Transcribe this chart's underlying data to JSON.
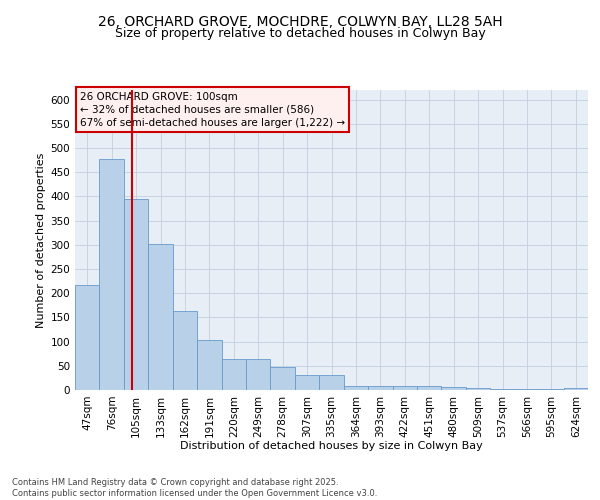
{
  "title_line1": "26, ORCHARD GROVE, MOCHDRE, COLWYN BAY, LL28 5AH",
  "title_line2": "Size of property relative to detached houses in Colwyn Bay",
  "xlabel": "Distribution of detached houses by size in Colwyn Bay",
  "ylabel": "Number of detached properties",
  "categories": [
    "47sqm",
    "76sqm",
    "105sqm",
    "133sqm",
    "162sqm",
    "191sqm",
    "220sqm",
    "249sqm",
    "278sqm",
    "307sqm",
    "335sqm",
    "364sqm",
    "393sqm",
    "422sqm",
    "451sqm",
    "480sqm",
    "509sqm",
    "537sqm",
    "566sqm",
    "595sqm",
    "624sqm"
  ],
  "values": [
    218,
    478,
    395,
    302,
    163,
    104,
    65,
    65,
    48,
    31,
    31,
    9,
    9,
    9,
    9,
    7,
    5,
    3,
    3,
    3,
    5
  ],
  "bar_color": "#b8d0e8",
  "bar_edge_color": "#6699cc",
  "grid_color": "#c8d4e4",
  "background_color": "#e8eef6",
  "annotation_text": "26 ORCHARD GROVE: 100sqm\n← 32% of detached houses are smaller (586)\n67% of semi-detached houses are larger (1,222) →",
  "footer_text": "Contains HM Land Registry data © Crown copyright and database right 2025.\nContains public sector information licensed under the Open Government Licence v3.0.",
  "ylim": [
    0,
    620
  ],
  "yticks": [
    0,
    50,
    100,
    150,
    200,
    250,
    300,
    350,
    400,
    450,
    500,
    550,
    600
  ],
  "annotation_line_color": "#cc0000",
  "title_fontsize": 10,
  "subtitle_fontsize": 9,
  "axis_fontsize": 8,
  "tick_fontsize": 7.5,
  "footer_fontsize": 6
}
